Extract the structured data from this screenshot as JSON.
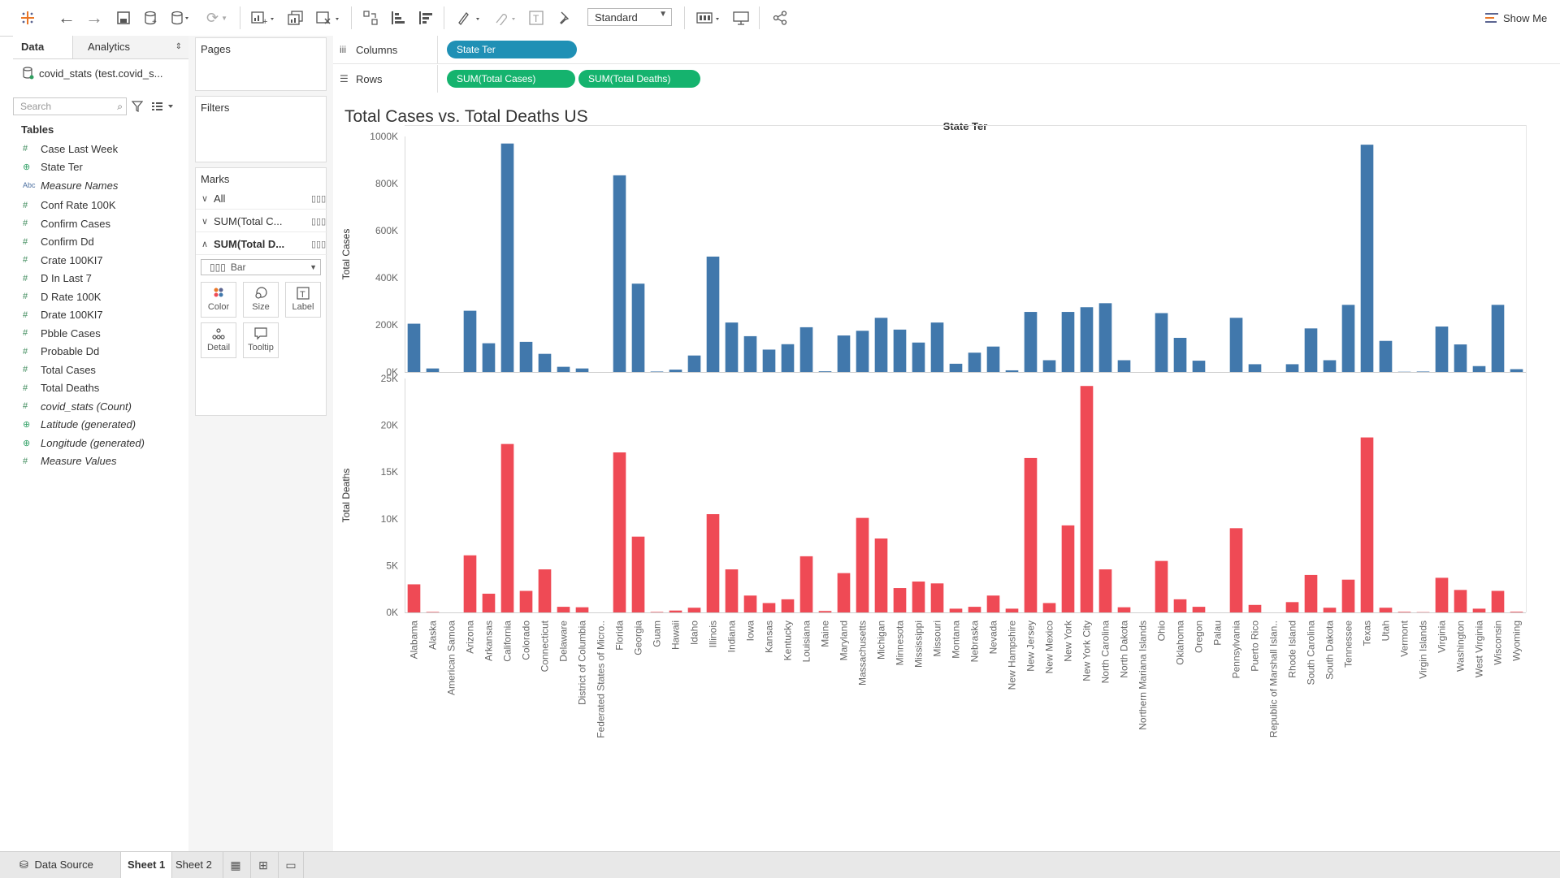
{
  "toolbar": {
    "fit_mode": "Standard",
    "show_me_label": "Show Me",
    "icons": [
      "tableau-logo-icon",
      "undo-icon",
      "redo-icon",
      "save-icon",
      "new-datasource-icon",
      "pause-updates-icon",
      "refresh-icon",
      "new-worksheet-icon",
      "duplicate-sheet-icon",
      "clear-sheet-icon",
      "swap-rows-columns-icon",
      "sort-ascending-icon",
      "sort-descending-icon",
      "highlight-icon",
      "group-icon",
      "show-labels-icon",
      "fix-axes-icon",
      "fit-icon",
      "show-cards-icon",
      "presentation-icon",
      "share-icon",
      "show-me-icon"
    ]
  },
  "left_panel": {
    "tab_data": "Data",
    "tab_analytics": "Analytics",
    "datasource": "covid_stats (test.covid_s...",
    "search_placeholder": "Search",
    "tables_header": "Tables",
    "fields": [
      {
        "icon": "#",
        "name": "Case Last Week",
        "italic": false
      },
      {
        "icon": "globe",
        "name": "State Ter",
        "italic": false
      },
      {
        "icon": "Abc",
        "name": "Measure Names",
        "italic": true
      },
      {
        "icon": "#",
        "name": "Conf Rate 100K",
        "italic": false
      },
      {
        "icon": "#",
        "name": "Confirm Cases",
        "italic": false
      },
      {
        "icon": "#",
        "name": "Confirm Dd",
        "italic": false
      },
      {
        "icon": "#",
        "name": "Crate 100KI7",
        "italic": false
      },
      {
        "icon": "#",
        "name": "D In Last 7",
        "italic": false
      },
      {
        "icon": "#",
        "name": "D Rate 100K",
        "italic": false
      },
      {
        "icon": "#",
        "name": "Drate 100KI7",
        "italic": false
      },
      {
        "icon": "#",
        "name": "Pbble Cases",
        "italic": false
      },
      {
        "icon": "#",
        "name": "Probable Dd",
        "italic": false
      },
      {
        "icon": "#",
        "name": "Total Cases",
        "italic": false
      },
      {
        "icon": "#",
        "name": "Total Deaths",
        "italic": false
      },
      {
        "icon": "#",
        "name": "covid_stats (Count)",
        "italic": true
      },
      {
        "icon": "globe",
        "name": "Latitude (generated)",
        "italic": true
      },
      {
        "icon": "globe",
        "name": "Longitude (generated)",
        "italic": true
      },
      {
        "icon": "#",
        "name": "Measure Values",
        "italic": true
      }
    ]
  },
  "mid_panel": {
    "pages_title": "Pages",
    "filters_title": "Filters",
    "marks_title": "Marks",
    "marks_rows": [
      {
        "label": "All",
        "chevron": "v"
      },
      {
        "label": "SUM(Total C...",
        "chevron": "v"
      },
      {
        "label": "SUM(Total D...",
        "chevron": "^"
      }
    ],
    "mark_type": "Bar",
    "mark_buttons": [
      "Color",
      "Size",
      "Label",
      "Detail",
      "Tooltip"
    ]
  },
  "shelves": {
    "columns_label": "Columns",
    "rows_label": "Rows",
    "columns_pills": [
      "State Ter"
    ],
    "rows_pills": [
      "SUM(Total Cases)",
      "SUM(Total Deaths)"
    ]
  },
  "sheet_title": "Total Cases vs. Total Deaths US",
  "bottom": {
    "data_source": "Data Source",
    "tabs": [
      "Sheet 1",
      "Sheet 2"
    ]
  },
  "colors": {
    "cases_bar": "#4178ac",
    "deaths_bar": "#ef4a55",
    "dimension_pill": "#1f90b5",
    "measure_pill": "#15b36e"
  },
  "chart_data": {
    "type": "bar",
    "title": "Total Cases vs. Total Deaths US",
    "xlabel": "State Ter",
    "categories": [
      "Alabama",
      "Alaska",
      "American Samoa",
      "Arizona",
      "Arkansas",
      "California",
      "Colorado",
      "Connecticut",
      "Delaware",
      "District of Columbia",
      "Federated States of Micro..",
      "Florida",
      "Georgia",
      "Guam",
      "Hawaii",
      "Idaho",
      "Illinois",
      "Indiana",
      "Iowa",
      "Kansas",
      "Kentucky",
      "Louisiana",
      "Maine",
      "Maryland",
      "Massachusetts",
      "Michigan",
      "Minnesota",
      "Mississippi",
      "Missouri",
      "Montana",
      "Nebraska",
      "Nevada",
      "New Hampshire",
      "New Jersey",
      "New Mexico",
      "New York",
      "New York City",
      "North Carolina",
      "North Dakota",
      "Northern Mariana Islands",
      "Ohio",
      "Oklahoma",
      "Oregon",
      "Palau",
      "Pennsylvania",
      "Puerto Rico",
      "Republic of Marshall Islan..",
      "Rhode Island",
      "South Carolina",
      "South Dakota",
      "Tennessee",
      "Texas",
      "Utah",
      "Vermont",
      "Virgin Islands",
      "Virginia",
      "Washington",
      "West Virginia",
      "Wisconsin",
      "Wyoming"
    ],
    "series": [
      {
        "name": "Total Cases",
        "ylabel": "Total Cases",
        "ylim": [
          0,
          1000000
        ],
        "ticks": [
          "0K",
          "200K",
          "400K",
          "600K",
          "800K",
          "1000K"
        ],
        "tick_values": [
          0,
          200000,
          400000,
          600000,
          800000,
          1000000
        ],
        "values": [
          205000,
          15000,
          0,
          260000,
          122000,
          970000,
          128000,
          77000,
          22000,
          15000,
          0,
          835000,
          375000,
          2000,
          10000,
          70000,
          490000,
          210000,
          152000,
          95000,
          118000,
          190000,
          3000,
          155000,
          175000,
          230000,
          180000,
          125000,
          210000,
          35000,
          82000,
          108000,
          7000,
          255000,
          50000,
          255000,
          275000,
          292000,
          50000,
          0,
          250000,
          145000,
          48000,
          0,
          230000,
          33000,
          0,
          33000,
          185000,
          50000,
          285000,
          965000,
          132000,
          1000,
          2000,
          193000,
          117000,
          25000,
          285000,
          12000
        ]
      },
      {
        "name": "Total Deaths",
        "ylabel": "Total Deaths",
        "ylim": [
          0,
          25000
        ],
        "ticks": [
          "0K",
          "5K",
          "10K",
          "15K",
          "20K",
          "25K"
        ],
        "tick_values": [
          0,
          5000,
          10000,
          15000,
          20000,
          25000
        ],
        "values": [
          3000,
          50,
          0,
          6100,
          2000,
          18000,
          2300,
          4600,
          600,
          550,
          0,
          17100,
          8100,
          50,
          200,
          500,
          10500,
          4600,
          1800,
          1000,
          1400,
          6000,
          150,
          4200,
          10100,
          7900,
          2600,
          3300,
          3100,
          400,
          600,
          1800,
          400,
          16500,
          1000,
          9300,
          24200,
          4600,
          550,
          0,
          5500,
          1400,
          600,
          0,
          9000,
          800,
          0,
          1100,
          4000,
          500,
          3500,
          18700,
          500,
          60,
          30,
          3700,
          2400,
          400,
          2300,
          70
        ]
      }
    ],
    "legend": "none",
    "grid": false
  }
}
